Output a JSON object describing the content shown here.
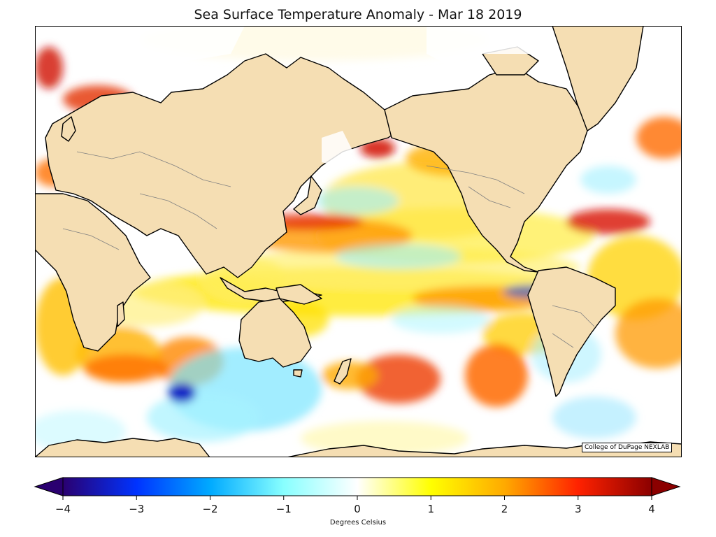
{
  "title": "Sea Surface Temperature Anomaly - Mar 18 2019",
  "credit": "College of DuPage NEXLAB",
  "colorbar": {
    "label": "Degrees Celsius",
    "min": -4,
    "max": 4,
    "ticks": [
      "−4",
      "−3",
      "−2",
      "−1",
      "0",
      "1",
      "2",
      "3",
      "4"
    ],
    "tick_values": [
      -4,
      -3,
      -2,
      -1,
      0,
      1,
      2,
      3,
      4
    ],
    "colors": [
      "#2a0070",
      "#0033ff",
      "#00aaff",
      "#88ffff",
      "#ffffff",
      "#ffff00",
      "#ffaa00",
      "#ff2200",
      "#8b0000"
    ],
    "extend": "both"
  },
  "map": {
    "projection": "cylindrical, Pacific-centered",
    "land_color": "#f5deb3",
    "ocean_neutral": "#ffffff",
    "sea_ice_color": "#ffffff",
    "coastline_color": "#000000",
    "border_color": "#808080"
  }
}
